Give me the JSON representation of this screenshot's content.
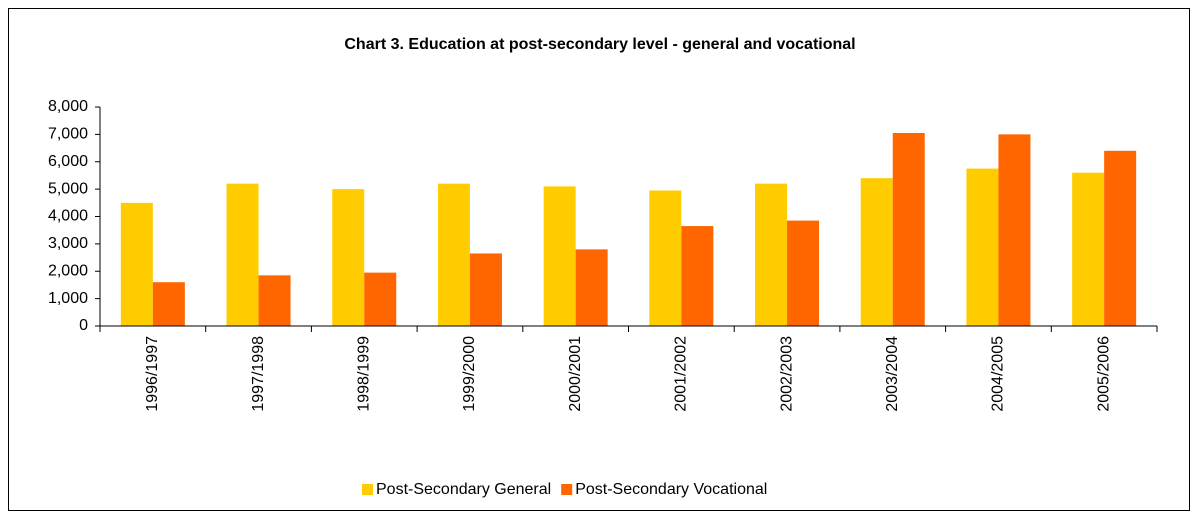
{
  "chart_data": {
    "type": "bar",
    "title": "Chart 3. Education at post-secondary level - general and vocational",
    "categories": [
      "1996/1997",
      "1997/1998",
      "1998/1999",
      "1999/2000",
      "2000/2001",
      "2001/2002",
      "2002/2003",
      "2003/2004",
      "2004/2005",
      "2005/2006"
    ],
    "series": [
      {
        "name": "Post-Secondary General",
        "color": "#ffcc00",
        "values": [
          4500,
          5200,
          5000,
          5200,
          5100,
          4950,
          5200,
          5400,
          5750,
          5600
        ]
      },
      {
        "name": "Post-Secondary Vocational",
        "color": "#ff6600",
        "values": [
          1600,
          1850,
          1950,
          2650,
          2800,
          3650,
          3850,
          7050,
          7000,
          6400
        ]
      }
    ],
    "ylim": [
      0,
      8000
    ],
    "yticks": [
      0,
      {
        "value": 1000,
        "label": "1,000"
      },
      {
        "value": 2000,
        "label": "2,000"
      },
      {
        "value": 3000,
        "label": "3,000"
      },
      {
        "value": 4000,
        "label": "4,000"
      },
      {
        "value": 5000,
        "label": "5,000"
      },
      {
        "value": 6000,
        "label": "6,000"
      },
      {
        "value": 7000,
        "label": "7,000"
      },
      {
        "value": 8000,
        "label": "8,000"
      }
    ],
    "grid": false,
    "legend": "bottom"
  }
}
